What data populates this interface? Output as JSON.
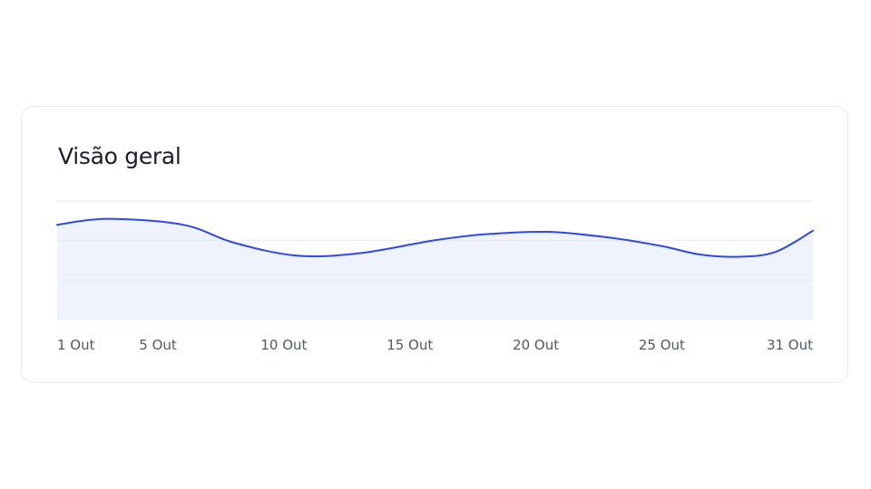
{
  "card": {
    "title": "Visão geral"
  },
  "colors": {
    "line": "#2f49e6",
    "area": "#eef3fd",
    "grid": "#e8eaee",
    "axis_text": "#505867"
  },
  "chart_data": {
    "type": "area",
    "title": "Visão geral",
    "xlabel": "",
    "ylabel": "",
    "grid": true,
    "x_ticks": [
      {
        "day": 1,
        "label": "1 Out"
      },
      {
        "day": 5,
        "label": "5 Out"
      },
      {
        "day": 10,
        "label": "10 Out"
      },
      {
        "day": 15,
        "label": "15 Out"
      },
      {
        "day": 20,
        "label": "20 Out"
      },
      {
        "day": 25,
        "label": "25 Out"
      },
      {
        "day": 31,
        "label": "31 Out"
      }
    ],
    "xlim": [
      1,
      31
    ],
    "ylim": [
      0,
      100
    ],
    "y_gridlines": [
      33,
      67,
      100
    ],
    "series": [
      {
        "points": [
          {
            "x": 1,
            "y": 80
          },
          {
            "x": 3,
            "y": 85
          },
          {
            "x": 6,
            "y": 80
          },
          {
            "x": 8,
            "y": 65
          },
          {
            "x": 10.5,
            "y": 54
          },
          {
            "x": 13,
            "y": 56
          },
          {
            "x": 16,
            "y": 67
          },
          {
            "x": 18,
            "y": 72
          },
          {
            "x": 20.5,
            "y": 74
          },
          {
            "x": 23,
            "y": 69
          },
          {
            "x": 25,
            "y": 62
          },
          {
            "x": 26.5,
            "y": 55
          },
          {
            "x": 28,
            "y": 53
          },
          {
            "x": 29.5,
            "y": 57
          },
          {
            "x": 31,
            "y": 75
          }
        ]
      }
    ]
  }
}
